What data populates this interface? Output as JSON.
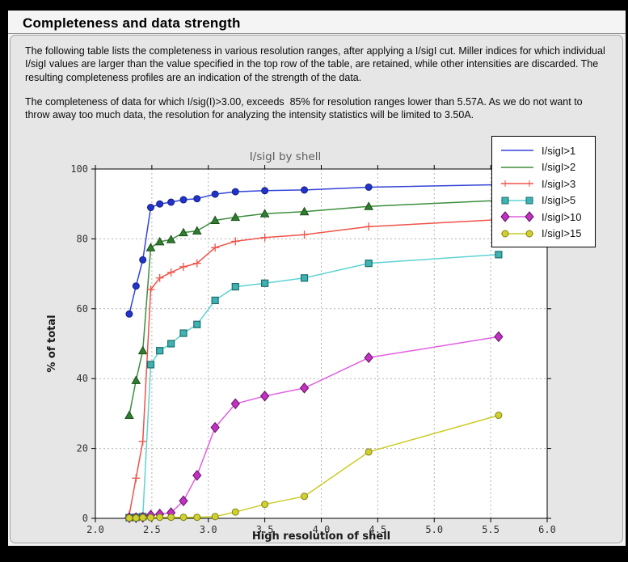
{
  "header": {
    "title": "Completeness and data strength"
  },
  "content": {
    "paragraph1": "The following table lists the completeness in various resolution ranges, after applying a I/sigI cut. Miller indices for which individual I/sigI values are larger than the value specified in the top row of the table, are retained, while other intensities are discarded. The resulting completeness profiles are an indication of the strength of the data.",
    "paragraph2": "The completeness of data for which I/sig(I)>3.00, exceeds  85% for resolution ranges lower than 5.57A. As we do not want to throw away too much data, the resolution for analyzing the intensity statistics will be limited to 3.50A."
  },
  "chart_data": {
    "type": "line",
    "title": "I/sigI by shell",
    "xlabel": "High resolution of shell",
    "ylabel": "% of total",
    "xlim": [
      2.0,
      6.0
    ],
    "ylim": [
      0,
      100
    ],
    "xticks": [
      2.0,
      2.5,
      3.0,
      3.5,
      4.0,
      4.5,
      5.0,
      5.5,
      6.0
    ],
    "yticks": [
      0,
      20,
      40,
      60,
      80,
      100
    ],
    "grid": true,
    "legend_position": "top-right",
    "x": [
      2.3,
      2.36,
      2.42,
      2.49,
      2.57,
      2.67,
      2.78,
      2.9,
      3.06,
      3.24,
      3.5,
      3.85,
      4.42,
      5.57
    ],
    "series": [
      {
        "name": "I/sigI>1",
        "marker": "circle",
        "legend_markers": false,
        "line_color": "#3344d8",
        "marker_color": "#2233cc",
        "marker_edge": "#16207e",
        "values": [
          58.5,
          66.5,
          74.0,
          89.0,
          90.0,
          90.5,
          91.2,
          91.5,
          92.8,
          93.5,
          93.8,
          94.0,
          94.8,
          95.5
        ]
      },
      {
        "name": "I/sigI>2",
        "marker": "triangle",
        "legend_markers": false,
        "line_color": "#3e8e3e",
        "marker_color": "#2f7d2f",
        "marker_edge": "#1c4f1c",
        "values": [
          29.5,
          39.5,
          48.0,
          77.5,
          79.2,
          79.8,
          81.8,
          82.3,
          85.3,
          86.2,
          87.2,
          87.8,
          89.3,
          91.0
        ]
      },
      {
        "name": "I/sigI>3",
        "marker": "plus",
        "legend_markers": true,
        "line_color": "#ef5349",
        "marker_color": "#ef5349",
        "marker_edge": "#ef5349",
        "values": [
          1.0,
          11.5,
          22.0,
          65.5,
          68.8,
          70.4,
          72.0,
          73.0,
          77.5,
          79.3,
          80.4,
          81.2,
          83.5,
          85.5
        ]
      },
      {
        "name": "I/sigI>5",
        "marker": "square",
        "legend_markers": true,
        "line_color": "#5ed3d3",
        "marker_color": "#3fb2b2",
        "marker_edge": "#1e6e6e",
        "values": [
          0.2,
          0.3,
          0.5,
          44.0,
          48.0,
          50.0,
          53.0,
          55.5,
          62.4,
          66.3,
          67.3,
          68.8,
          73.0,
          75.5
        ]
      },
      {
        "name": "I/sigI>10",
        "marker": "diamond",
        "legend_markers": true,
        "line_color": "#e15fe1",
        "marker_color": "#c231c2",
        "marker_edge": "#5e145e",
        "values": [
          0.2,
          0.2,
          0.3,
          0.9,
          1.2,
          1.6,
          5.0,
          12.3,
          26.0,
          32.8,
          35.0,
          37.3,
          46.0,
          52.0
        ]
      },
      {
        "name": "I/sigI>15",
        "marker": "circle",
        "legend_markers": true,
        "line_color": "#cccc2b",
        "marker_color": "#d0d032",
        "marker_edge": "#82820f",
        "values": [
          0.1,
          0.1,
          0.2,
          0.2,
          0.3,
          0.3,
          0.3,
          0.3,
          0.5,
          1.8,
          4.0,
          6.3,
          19.0,
          29.5
        ]
      }
    ]
  }
}
